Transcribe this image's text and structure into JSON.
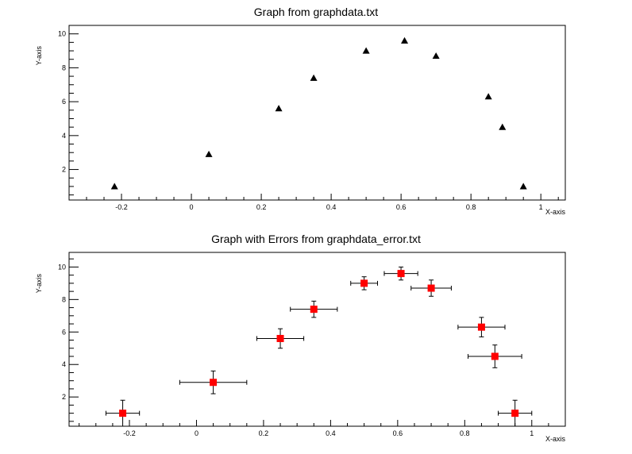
{
  "chart_data": [
    {
      "type": "scatter",
      "title": "Graph from graphdata.txt",
      "xlabel": "X-axis",
      "ylabel": "Y-axis",
      "xlim": [
        -0.35,
        1.07
      ],
      "ylim": [
        0.2,
        10.5
      ],
      "xticks": [
        -0.2,
        0,
        0.2,
        0.4,
        0.6,
        0.8,
        1
      ],
      "xtick_labels": [
        "-0.2",
        "0",
        "0.2",
        "0.4",
        "0.6",
        "0.8",
        "1"
      ],
      "yticks": [
        2,
        4,
        6,
        8,
        10
      ],
      "ytick_labels": [
        "2",
        "4",
        "6",
        "8",
        "10"
      ],
      "marker": "triangle",
      "marker_color": "#000000",
      "grid": false,
      "points": [
        {
          "x": -0.22,
          "y": 1.0
        },
        {
          "x": 0.05,
          "y": 2.9
        },
        {
          "x": 0.25,
          "y": 5.6
        },
        {
          "x": 0.35,
          "y": 7.4
        },
        {
          "x": 0.5,
          "y": 9.0
        },
        {
          "x": 0.61,
          "y": 9.6
        },
        {
          "x": 0.7,
          "y": 8.7
        },
        {
          "x": 0.85,
          "y": 6.3
        },
        {
          "x": 0.89,
          "y": 4.5
        },
        {
          "x": 0.95,
          "y": 1.0
        }
      ]
    },
    {
      "type": "scatter",
      "title": "Graph with Errors from graphdata_error.txt",
      "xlabel": "X-axis",
      "ylabel": "Y-axis",
      "xlim": [
        -0.38,
        1.1
      ],
      "ylim": [
        0.2,
        10.9
      ],
      "xticks": [
        -0.2,
        0,
        0.2,
        0.4,
        0.6,
        0.8,
        1
      ],
      "xtick_labels": [
        "-0.2",
        "0",
        "0.2",
        "0.4",
        "0.6",
        "0.8",
        "1"
      ],
      "yticks": [
        2,
        4,
        6,
        8,
        10
      ],
      "ytick_labels": [
        "2",
        "4",
        "6",
        "8",
        "10"
      ],
      "marker": "square",
      "marker_color": "#ff0000",
      "grid": false,
      "points": [
        {
          "x": -0.22,
          "y": 1.0,
          "ex": 0.05,
          "ey": 0.8
        },
        {
          "x": 0.05,
          "y": 2.9,
          "ex": 0.1,
          "ey": 0.7
        },
        {
          "x": 0.25,
          "y": 5.6,
          "ex": 0.07,
          "ey": 0.6
        },
        {
          "x": 0.35,
          "y": 7.4,
          "ex": 0.07,
          "ey": 0.5
        },
        {
          "x": 0.5,
          "y": 9.0,
          "ex": 0.04,
          "ey": 0.4
        },
        {
          "x": 0.61,
          "y": 9.6,
          "ex": 0.05,
          "ey": 0.4
        },
        {
          "x": 0.7,
          "y": 8.7,
          "ex": 0.06,
          "ey": 0.5
        },
        {
          "x": 0.85,
          "y": 6.3,
          "ex": 0.07,
          "ey": 0.6
        },
        {
          "x": 0.89,
          "y": 4.5,
          "ex": 0.08,
          "ey": 0.7
        },
        {
          "x": 0.95,
          "y": 1.0,
          "ex": 0.05,
          "ey": 0.8
        }
      ]
    }
  ]
}
